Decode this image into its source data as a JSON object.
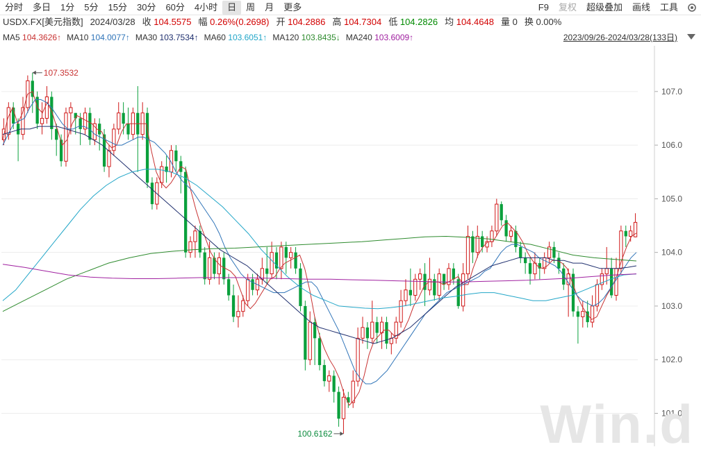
{
  "toolbar": {
    "periods": [
      "分时",
      "多日",
      "1分",
      "5分",
      "15分",
      "30分",
      "60分",
      "4小时",
      "日",
      "周",
      "月",
      "更多"
    ],
    "active": "日",
    "right": [
      "F9",
      "复权",
      "超级叠加",
      "画线",
      "工具"
    ]
  },
  "info": {
    "symbol": "USDX.FX[美元指数]",
    "date": "2024/03/28",
    "close_label": "收",
    "close": "104.5575",
    "change_label": "幅",
    "change": "0.26%(0.2698)",
    "open_label": "开",
    "open": "104.2886",
    "high_label": "高",
    "high": "104.7304",
    "low_label": "低",
    "low": "104.2826",
    "avg_label": "均",
    "avg": "104.4648",
    "vol_label": "量",
    "vol": "0",
    "turnover_label": "换",
    "turnover": "0.00%"
  },
  "ma_legend": [
    {
      "label": "MA5",
      "value": "104.3626↑",
      "color": "#c83232"
    },
    {
      "label": "MA10",
      "value": "104.0077↑",
      "color": "#2f74b8"
    },
    {
      "label": "MA30",
      "value": "103.7534↑",
      "color": "#1f2f6e"
    },
    {
      "label": "MA60",
      "value": "103.6051↑",
      "color": "#22a6c8"
    },
    {
      "label": "MA120",
      "value": "103.8435↓",
      "color": "#2e8b2e"
    },
    {
      "label": "MA240",
      "value": "103.6009↑",
      "color": "#a020a0"
    }
  ],
  "range": "2023/09/26-2024/03/28(133日)",
  "watermark": "Win.d",
  "chart_data": {
    "type": "candlestick",
    "ylim": [
      100.45,
      107.8
    ],
    "y_ticks": [
      "107.0",
      "106.0",
      "105.0",
      "104.0",
      "103.0",
      "102.0",
      "101.0"
    ],
    "y_tick_values": [
      107,
      106,
      105,
      104,
      103,
      102,
      101
    ],
    "max_label": "107.3532",
    "min_label": "100.6162",
    "colors": {
      "up": "#d01818",
      "down": "#0aa03c"
    },
    "candles": [
      [
        106.1,
        106.3,
        106.0,
        106.5
      ],
      [
        106.2,
        106.7,
        106.1,
        106.8
      ],
      [
        106.7,
        106.4,
        106.3,
        106.8
      ],
      [
        106.4,
        106.2,
        105.7,
        106.5
      ],
      [
        106.2,
        106.7,
        106.1,
        106.9
      ],
      [
        106.7,
        107.2,
        106.6,
        107.3
      ],
      [
        107.2,
        106.9,
        106.6,
        107.35
      ],
      [
        106.9,
        106.4,
        106.3,
        107.0
      ],
      [
        106.4,
        106.5,
        106.2,
        106.8
      ],
      [
        106.5,
        106.9,
        106.4,
        107.1
      ],
      [
        106.9,
        106.3,
        106.1,
        107.0
      ],
      [
        106.3,
        106.1,
        105.8,
        106.4
      ],
      [
        106.1,
        105.7,
        105.6,
        106.2
      ],
      [
        105.7,
        106.6,
        105.6,
        106.7
      ],
      [
        106.6,
        106.7,
        106.2,
        106.8
      ],
      [
        106.6,
        106.5,
        106.2,
        106.6
      ],
      [
        106.5,
        106.3,
        106.0,
        106.6
      ],
      [
        106.3,
        106.6,
        106.2,
        106.7
      ],
      [
        106.6,
        106.1,
        106.0,
        106.7
      ],
      [
        106.1,
        106.4,
        106.0,
        106.5
      ],
      [
        106.4,
        106.2,
        105.9,
        106.5
      ],
      [
        106.2,
        105.6,
        105.5,
        106.3
      ],
      [
        105.6,
        105.9,
        105.4,
        106.0
      ],
      [
        105.9,
        106.3,
        105.8,
        106.4
      ],
      [
        106.3,
        106.6,
        106.2,
        106.8
      ],
      [
        106.6,
        106.4,
        106.2,
        106.8
      ],
      [
        106.4,
        106.2,
        106.1,
        106.7
      ],
      [
        106.2,
        106.6,
        106.1,
        106.7
      ],
      [
        106.6,
        106.2,
        105.5,
        107.1
      ],
      [
        106.2,
        106.6,
        106.1,
        106.8
      ],
      [
        106.6,
        105.3,
        105.2,
        106.7
      ],
      [
        105.3,
        104.9,
        104.8,
        105.4
      ],
      [
        104.9,
        105.3,
        104.8,
        105.4
      ],
      [
        105.3,
        105.6,
        105.2,
        105.7
      ],
      [
        105.6,
        105.5,
        105.3,
        105.8
      ],
      [
        105.5,
        105.9,
        105.4,
        106.0
      ],
      [
        105.9,
        105.7,
        105.5,
        106.0
      ],
      [
        105.7,
        105.5,
        105.1,
        105.8
      ],
      [
        105.5,
        104.0,
        103.9,
        105.6
      ],
      [
        104.0,
        104.2,
        103.9,
        104.3
      ],
      [
        104.2,
        104.4,
        103.9,
        104.5
      ],
      [
        104.4,
        104.0,
        103.9,
        104.5
      ],
      [
        104.0,
        103.5,
        103.4,
        104.1
      ],
      [
        103.5,
        103.9,
        103.4,
        104.2
      ],
      [
        103.9,
        103.6,
        103.5,
        104.0
      ],
      [
        103.6,
        103.9,
        103.4,
        104.0
      ],
      [
        103.9,
        103.5,
        103.4,
        104.0
      ],
      [
        103.5,
        103.2,
        103.1,
        103.6
      ],
      [
        103.2,
        102.8,
        102.7,
        103.4
      ],
      [
        102.8,
        102.9,
        102.6,
        103.2
      ],
      [
        102.9,
        103.1,
        102.8,
        103.2
      ],
      [
        103.1,
        103.5,
        103.0,
        103.6
      ],
      [
        103.5,
        103.3,
        103.2,
        103.6
      ],
      [
        103.3,
        103.5,
        103.2,
        103.6
      ],
      [
        103.5,
        103.7,
        103.4,
        103.9
      ],
      [
        103.7,
        103.6,
        103.4,
        104.1
      ],
      [
        103.6,
        104.0,
        103.5,
        104.2
      ],
      [
        104.0,
        103.7,
        103.5,
        104.1
      ],
      [
        103.7,
        104.1,
        103.5,
        104.2
      ],
      [
        104.1,
        103.9,
        103.6,
        104.2
      ],
      [
        103.9,
        104.0,
        103.7,
        104.1
      ],
      [
        104.0,
        103.7,
        103.6,
        104.1
      ],
      [
        103.7,
        103.0,
        102.9,
        103.8
      ],
      [
        103.0,
        102.0,
        101.8,
        103.1
      ],
      [
        102.0,
        102.7,
        101.9,
        102.9
      ],
      [
        102.7,
        102.4,
        101.9,
        102.8
      ],
      [
        102.4,
        101.9,
        101.8,
        102.5
      ],
      [
        101.9,
        101.6,
        101.5,
        102.0
      ],
      [
        101.6,
        101.7,
        101.4,
        101.8
      ],
      [
        101.7,
        101.4,
        101.2,
        101.8
      ],
      [
        101.4,
        100.9,
        100.75,
        101.5
      ],
      [
        100.9,
        101.3,
        100.62,
        101.45
      ],
      [
        101.3,
        101.2,
        101.1,
        101.4
      ],
      [
        101.2,
        101.6,
        101.1,
        101.8
      ],
      [
        101.6,
        102.4,
        101.5,
        102.6
      ],
      [
        102.4,
        102.6,
        102.3,
        102.8
      ],
      [
        102.6,
        102.4,
        102.2,
        102.7
      ],
      [
        102.4,
        102.7,
        102.3,
        103.1
      ],
      [
        102.7,
        102.5,
        102.3,
        102.8
      ],
      [
        102.5,
        102.7,
        102.2,
        102.8
      ],
      [
        102.7,
        102.3,
        102.2,
        102.8
      ],
      [
        102.3,
        102.4,
        102.1,
        102.5
      ],
      [
        102.4,
        102.7,
        102.3,
        102.8
      ],
      [
        102.7,
        103.1,
        102.6,
        103.3
      ],
      [
        103.1,
        103.3,
        103.0,
        103.5
      ],
      [
        103.3,
        103.2,
        103.0,
        103.7
      ],
      [
        103.2,
        103.5,
        103.1,
        103.6
      ],
      [
        103.5,
        103.6,
        103.3,
        103.7
      ],
      [
        103.6,
        103.3,
        103.0,
        103.8
      ],
      [
        103.3,
        103.5,
        103.2,
        103.9
      ],
      [
        103.5,
        103.2,
        103.1,
        103.6
      ],
      [
        103.2,
        103.6,
        103.1,
        103.7
      ],
      [
        103.6,
        103.4,
        103.3,
        103.6
      ],
      [
        103.4,
        103.7,
        103.3,
        103.8
      ],
      [
        103.7,
        103.5,
        103.4,
        103.8
      ],
      [
        103.5,
        103.0,
        102.95,
        103.6
      ],
      [
        103.0,
        103.6,
        102.9,
        103.8
      ],
      [
        103.6,
        104.3,
        103.5,
        104.5
      ],
      [
        104.3,
        104.0,
        103.8,
        104.4
      ],
      [
        104.0,
        104.3,
        103.9,
        104.5
      ],
      [
        104.3,
        104.1,
        104.0,
        104.4
      ],
      [
        104.1,
        104.2,
        104.0,
        104.3
      ],
      [
        104.2,
        104.4,
        104.1,
        104.5
      ],
      [
        104.4,
        104.9,
        104.3,
        105.0
      ],
      [
        104.9,
        104.6,
        104.5,
        104.95
      ],
      [
        104.6,
        104.3,
        104.2,
        104.7
      ],
      [
        104.3,
        104.4,
        104.2,
        104.5
      ],
      [
        104.4,
        104.1,
        104.0,
        104.5
      ],
      [
        104.1,
        103.9,
        103.8,
        104.2
      ],
      [
        103.9,
        103.8,
        103.6,
        104.0
      ],
      [
        103.8,
        103.6,
        103.4,
        103.9
      ],
      [
        103.6,
        103.8,
        103.5,
        104.0
      ],
      [
        103.8,
        103.7,
        103.5,
        103.9
      ],
      [
        103.7,
        103.9,
        103.6,
        104.0
      ],
      [
        103.9,
        104.1,
        103.8,
        104.2
      ],
      [
        104.1,
        103.9,
        103.8,
        104.2
      ],
      [
        103.9,
        103.7,
        103.6,
        104.0
      ],
      [
        103.7,
        103.4,
        103.3,
        103.8
      ],
      [
        103.4,
        103.6,
        102.8,
        103.7
      ],
      [
        103.6,
        102.9,
        102.8,
        103.7
      ],
      [
        102.9,
        102.8,
        102.3,
        103.0
      ],
      [
        102.8,
        102.9,
        102.6,
        103.1
      ],
      [
        102.9,
        102.7,
        102.6,
        103.1
      ],
      [
        102.7,
        103.0,
        102.6,
        103.2
      ],
      [
        103.0,
        103.4,
        102.9,
        103.5
      ],
      [
        103.4,
        103.6,
        103.3,
        103.7
      ],
      [
        103.6,
        103.7,
        103.4,
        104.1
      ],
      [
        103.7,
        103.2,
        103.15,
        103.9
      ],
      [
        103.2,
        103.7,
        103.1,
        103.9
      ],
      [
        103.7,
        104.4,
        103.6,
        104.5
      ],
      [
        104.4,
        104.3,
        104.1,
        104.5
      ],
      [
        104.3,
        104.4,
        104.2,
        104.5
      ],
      [
        104.29,
        104.56,
        104.28,
        104.73
      ]
    ],
    "ma_lines": [
      {
        "name": "MA5",
        "values": [
          106.1,
          106.5,
          106.7,
          106.4,
          106.6,
          106.95,
          107.0,
          106.7,
          106.6,
          106.8,
          106.6,
          106.3,
          106.0,
          106.1,
          106.4,
          106.55,
          106.5,
          106.45,
          106.4,
          106.3,
          106.25,
          106.05,
          105.95,
          106.0,
          106.25,
          106.4,
          106.4,
          106.4,
          106.4,
          106.4,
          105.9,
          105.5,
          105.3,
          105.2,
          105.3,
          105.45,
          105.6,
          105.55,
          105.15,
          104.8,
          104.5,
          104.25,
          104.0,
          103.85,
          103.75,
          103.7,
          103.65,
          103.55,
          103.3,
          103.05,
          102.95,
          103.05,
          103.2,
          103.35,
          103.5,
          103.55,
          103.7,
          103.8,
          103.85,
          103.9,
          103.95,
          103.7,
          103.3,
          102.8,
          102.45,
          102.2,
          102.0,
          101.85,
          101.65,
          101.35,
          101.15,
          101.25,
          101.4,
          101.7,
          102.1,
          102.35,
          102.45,
          102.55,
          102.55,
          102.45,
          102.45,
          102.55,
          102.75,
          103.0,
          103.15,
          103.35,
          103.45,
          103.45,
          103.45,
          103.4,
          103.45,
          103.5,
          103.55,
          103.4,
          103.4,
          103.7,
          103.95,
          104.1,
          104.2,
          104.2,
          104.35,
          104.5,
          104.55,
          104.45,
          104.35,
          104.2,
          104.0,
          103.85,
          103.75,
          103.7,
          103.75,
          103.85,
          103.85,
          103.8,
          103.7,
          103.45,
          103.2,
          103.0,
          102.85,
          102.75,
          102.8,
          103.0,
          103.2,
          103.35,
          103.55,
          103.85,
          104.1,
          104.3,
          104.36
        ]
      },
      {
        "name": "MA10",
        "values": [
          106.0,
          106.2,
          106.4,
          106.45,
          106.5,
          106.7,
          106.85,
          106.85,
          106.8,
          106.7,
          106.55,
          106.4,
          106.3,
          106.3,
          106.35,
          106.35,
          106.3,
          106.2,
          106.15,
          106.1,
          106.05,
          106.0,
          106.0,
          106.05,
          106.1,
          106.15,
          106.15,
          106.1,
          106.05,
          105.95,
          105.85,
          105.7,
          105.5,
          105.35,
          105.25,
          105.15,
          105.0,
          104.85,
          104.7,
          104.55,
          104.35,
          104.1,
          103.9,
          103.75,
          103.6,
          103.5,
          103.45,
          103.4,
          103.35,
          103.3,
          103.25,
          103.25,
          103.25,
          103.3,
          103.35,
          103.4,
          103.45,
          103.45,
          103.35,
          103.15,
          102.95,
          102.75,
          102.55,
          102.3,
          102.05,
          101.8,
          101.65,
          101.55,
          101.55,
          101.6,
          101.7,
          101.8,
          101.95,
          102.1,
          102.25,
          102.4,
          102.55,
          102.7,
          102.85,
          102.95,
          103.05,
          103.15,
          103.25,
          103.3,
          103.35,
          103.4,
          103.45,
          103.5,
          103.55,
          103.65,
          103.7,
          103.85,
          104.0,
          104.1,
          104.15,
          104.15,
          104.1,
          104.05,
          104.0,
          103.9,
          103.85,
          103.8,
          103.75,
          103.65,
          103.5,
          103.35,
          103.2,
          103.1,
          103.05,
          103.0,
          103.05,
          103.15,
          103.3,
          103.45,
          103.6,
          103.75,
          103.9,
          104.0
        ]
      },
      {
        "name": "MA30",
        "values": [
          106.2,
          106.25,
          106.3,
          106.3,
          106.35,
          106.35,
          106.35,
          106.3,
          106.25,
          106.2,
          106.1,
          106.0,
          105.85,
          105.7,
          105.55,
          105.4,
          105.25,
          105.1,
          104.95,
          104.8,
          104.65,
          104.5,
          104.35,
          104.2,
          104.05,
          103.95,
          103.85,
          103.75,
          103.6,
          103.45,
          103.3,
          103.15,
          103.0,
          102.85,
          102.7,
          102.6,
          102.55,
          102.5,
          102.45,
          102.4,
          102.35,
          102.3,
          102.35,
          102.4,
          102.5,
          102.6,
          102.75,
          102.9,
          103.05,
          103.2,
          103.35,
          103.45,
          103.55,
          103.65,
          103.75,
          103.8,
          103.85,
          103.9,
          103.9,
          103.9,
          103.9,
          103.85,
          103.85,
          103.8,
          103.8,
          103.75,
          103.7,
          103.7,
          103.7,
          103.72,
          103.75
        ]
      },
      {
        "name": "MA60",
        "values": [
          103.1,
          103.3,
          103.6,
          103.9,
          104.2,
          104.5,
          104.8,
          105.05,
          105.25,
          105.4,
          105.5,
          105.55,
          105.55,
          105.5,
          105.4,
          105.25,
          105.05,
          104.85,
          104.6,
          104.35,
          104.05,
          103.8,
          103.55,
          103.35,
          103.2,
          103.1,
          103.0,
          102.98,
          102.96,
          102.95,
          102.97,
          103.0,
          103.05,
          103.1,
          103.15,
          103.18,
          103.22,
          103.25,
          103.25,
          103.2,
          103.15,
          103.1,
          103.1,
          103.15,
          103.2,
          103.3,
          103.4,
          103.5,
          103.58,
          103.6
        ]
      },
      {
        "name": "MA120",
        "values": [
          102.9,
          103.1,
          103.3,
          103.5,
          103.65,
          103.8,
          103.9,
          103.98,
          104.02,
          104.05,
          104.07,
          104.08,
          104.1,
          104.12,
          104.14,
          104.16,
          104.18,
          104.2,
          104.23,
          104.26,
          104.29,
          104.3,
          104.28,
          104.25,
          104.2,
          104.15,
          104.05,
          103.95,
          103.9,
          103.87,
          103.84
        ]
      },
      {
        "name": "MA240",
        "values": [
          103.78,
          103.72,
          103.65,
          103.58,
          103.54,
          103.52,
          103.51,
          103.51,
          103.52,
          103.53,
          103.53,
          103.53,
          103.52,
          103.51,
          103.5,
          103.5,
          103.49,
          103.48,
          103.47,
          103.46,
          103.45,
          103.45,
          103.46,
          103.47,
          103.48,
          103.5,
          103.52,
          103.55,
          103.58,
          103.6
        ]
      }
    ]
  }
}
